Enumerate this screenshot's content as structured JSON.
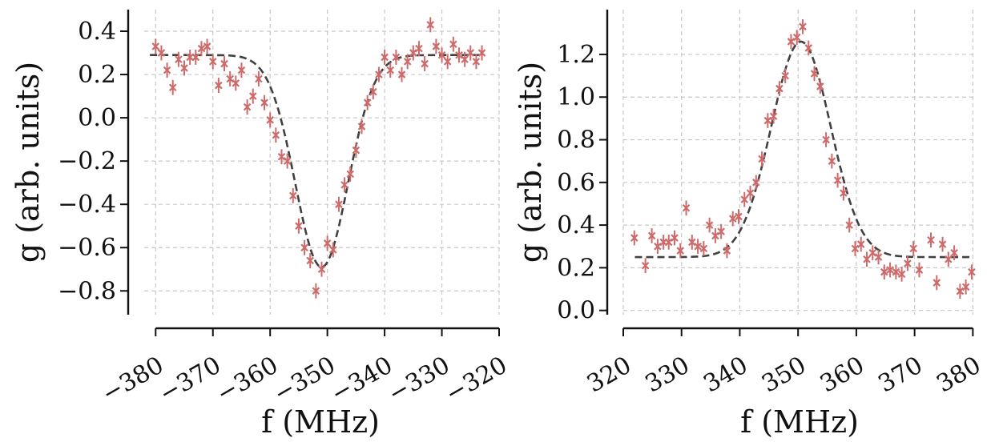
{
  "figure": {
    "colors": {
      "points": "#cd6b6b",
      "fit": "#404040",
      "grid": "#c8c8c8",
      "axis": "#111111"
    }
  },
  "chart_data": [
    {
      "type": "scatter",
      "xlabel": "f (MHz)",
      "ylabel": "g (arb. units)",
      "xlim": [
        -382,
        -320
      ],
      "ylim": [
        -0.91,
        0.5
      ],
      "xticks": [
        -380,
        -370,
        -360,
        -350,
        -340,
        -330,
        -320
      ],
      "xtick_labels": [
        "−380",
        "−370",
        "−360",
        "−350",
        "−340",
        "−330",
        "−320"
      ],
      "yticks": [
        0.4,
        0.2,
        0.0,
        -0.2,
        -0.4,
        -0.6,
        -0.8
      ],
      "ytick_labels": [
        "0.4",
        "0.2",
        "0.0",
        "−0.2",
        "−0.4",
        "−0.6",
        "−0.8"
      ],
      "grid": true,
      "series": [
        {
          "kind": "points_with_errorbars",
          "color": "#cd6b6b",
          "marker": "x",
          "error": 0.035,
          "x": [
            -380,
            -379,
            -378,
            -377,
            -376,
            -375,
            -374,
            -373,
            -372,
            -371,
            -370,
            -369,
            -368,
            -367,
            -366,
            -365,
            -364,
            -363,
            -362,
            -361,
            -360,
            -359,
            -358,
            -357,
            -356,
            -355,
            -354,
            -353,
            -352,
            -351,
            -350,
            -349,
            -348,
            -347,
            -346,
            -345,
            -344,
            -343,
            -342,
            -341,
            -340,
            -339,
            -338,
            -337,
            -336,
            -335,
            -334,
            -333,
            -332,
            -331,
            -330,
            -329,
            -328,
            -327,
            -326,
            -325,
            -324,
            -323
          ],
          "y": [
            0.33,
            0.3,
            0.22,
            0.14,
            0.27,
            0.23,
            0.28,
            0.28,
            0.32,
            0.33,
            0.26,
            0.15,
            0.25,
            0.18,
            0.16,
            0.22,
            0.05,
            0.1,
            0.18,
            0.07,
            -0.01,
            -0.08,
            -0.18,
            -0.2,
            -0.36,
            -0.5,
            -0.6,
            -0.66,
            -0.8,
            -0.7,
            -0.58,
            -0.61,
            -0.4,
            -0.31,
            -0.26,
            -0.15,
            -0.04,
            0.07,
            0.12,
            0.2,
            0.28,
            0.22,
            0.28,
            0.2,
            0.26,
            0.3,
            0.32,
            0.25,
            0.43,
            0.33,
            0.29,
            0.26,
            0.34,
            0.29,
            0.27,
            0.3,
            0.26,
            0.3
          ]
        },
        {
          "kind": "fit_line",
          "style": "dashed",
          "color": "#404040",
          "function": "gaussian",
          "baseline": 0.29,
          "amplitude": -0.98,
          "center": -351,
          "sigma": 4.6,
          "x_range": [
            -381,
            -323
          ]
        }
      ]
    },
    {
      "type": "scatter",
      "xlabel": "f (MHz)",
      "ylabel": "g (arb. units)",
      "xlim": [
        320,
        380.5
      ],
      "ylim": [
        -0.02,
        1.41
      ],
      "xticks": [
        320,
        330,
        340,
        350,
        360,
        370,
        380
      ],
      "xtick_labels": [
        "320",
        "330",
        "340",
        "350",
        "360",
        "370",
        "380"
      ],
      "yticks": [
        0.0,
        0.2,
        0.4,
        0.6,
        0.8,
        1.0,
        1.2
      ],
      "ytick_labels": [
        "0.0",
        "0.2",
        "0.4",
        "0.6",
        "0.8",
        "1.0",
        "1.2"
      ],
      "grid": true,
      "series": [
        {
          "kind": "points_with_errorbars",
          "color": "#cd6b6b",
          "marker": "x",
          "error": 0.035,
          "x": [
            321.9,
            323.8,
            324.9,
            325.9,
            326.9,
            327.8,
            328.8,
            329.8,
            330.8,
            331.8,
            332.8,
            333.8,
            334.8,
            335.8,
            336.8,
            337.8,
            338.8,
            339.8,
            340.8,
            341.8,
            342.8,
            343.8,
            344.8,
            345.8,
            346.8,
            347.8,
            348.8,
            349.8,
            350.8,
            351.8,
            352.8,
            353.8,
            354.8,
            355.8,
            356.8,
            357.8,
            358.8,
            359.8,
            360.8,
            361.8,
            362.8,
            363.8,
            364.8,
            365.8,
            366.8,
            367.8,
            368.8,
            369.8,
            370.8,
            372.8,
            373.8,
            374.8,
            375.8,
            376.8,
            377.8,
            378.8,
            379.8
          ],
          "y": [
            0.34,
            0.21,
            0.35,
            0.3,
            0.32,
            0.32,
            0.34,
            0.28,
            0.48,
            0.32,
            0.3,
            0.29,
            0.4,
            0.35,
            0.37,
            0.28,
            0.43,
            0.44,
            0.52,
            0.55,
            0.6,
            0.71,
            0.89,
            0.91,
            1.04,
            1.1,
            1.26,
            1.28,
            1.33,
            1.23,
            1.11,
            1.05,
            0.8,
            0.7,
            0.61,
            0.55,
            0.4,
            0.29,
            0.31,
            0.24,
            0.27,
            0.25,
            0.18,
            0.19,
            0.18,
            0.17,
            0.22,
            0.29,
            0.19,
            0.33,
            0.13,
            0.31,
            0.24,
            0.27,
            0.09,
            0.11,
            0.18
          ]
        },
        {
          "kind": "fit_line",
          "style": "dashed",
          "color": "#404040",
          "function": "gaussian",
          "baseline": 0.25,
          "amplitude": 1.01,
          "center": 350.5,
          "sigma": 5.1,
          "x_range": [
            322,
            380
          ]
        }
      ]
    }
  ]
}
